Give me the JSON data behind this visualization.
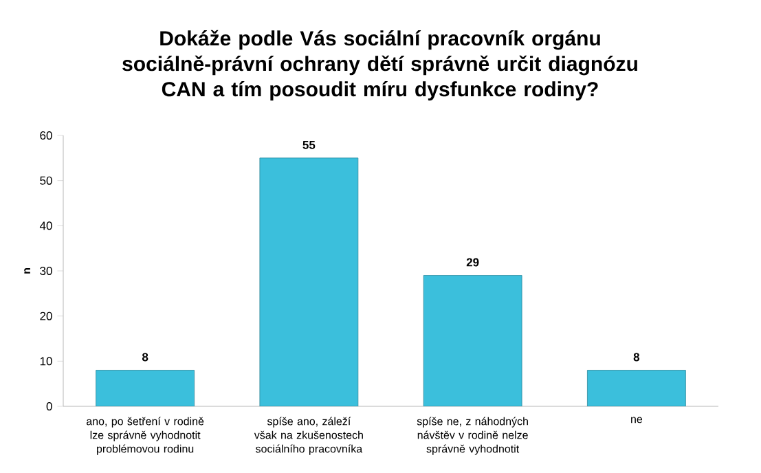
{
  "chart_data": {
    "type": "bar",
    "title": "Dokáže podle Vás sociální pracovník orgánu sociálně-právní ochrany dětí správně určit diagnózu CAN a tím posoudit míru dysfunkce rodiny?",
    "ylabel": "n",
    "categories": [
      "ano, po šetření v rodině lze správně vyhodnotit problémovou rodinu",
      "spíše ano, záleží však na zkušenostech sociálního pracovníka",
      "spíše ne, z náhodných návštěv v rodině nelze správně vyhodnotit",
      "ne"
    ],
    "values": [
      8,
      55,
      29,
      8
    ],
    "color": "#3bbfdc",
    "ylim": [
      0,
      60
    ],
    "yticks": [
      0,
      10,
      20,
      30,
      40,
      50,
      60
    ],
    "data_labels": true,
    "grid": false
  }
}
